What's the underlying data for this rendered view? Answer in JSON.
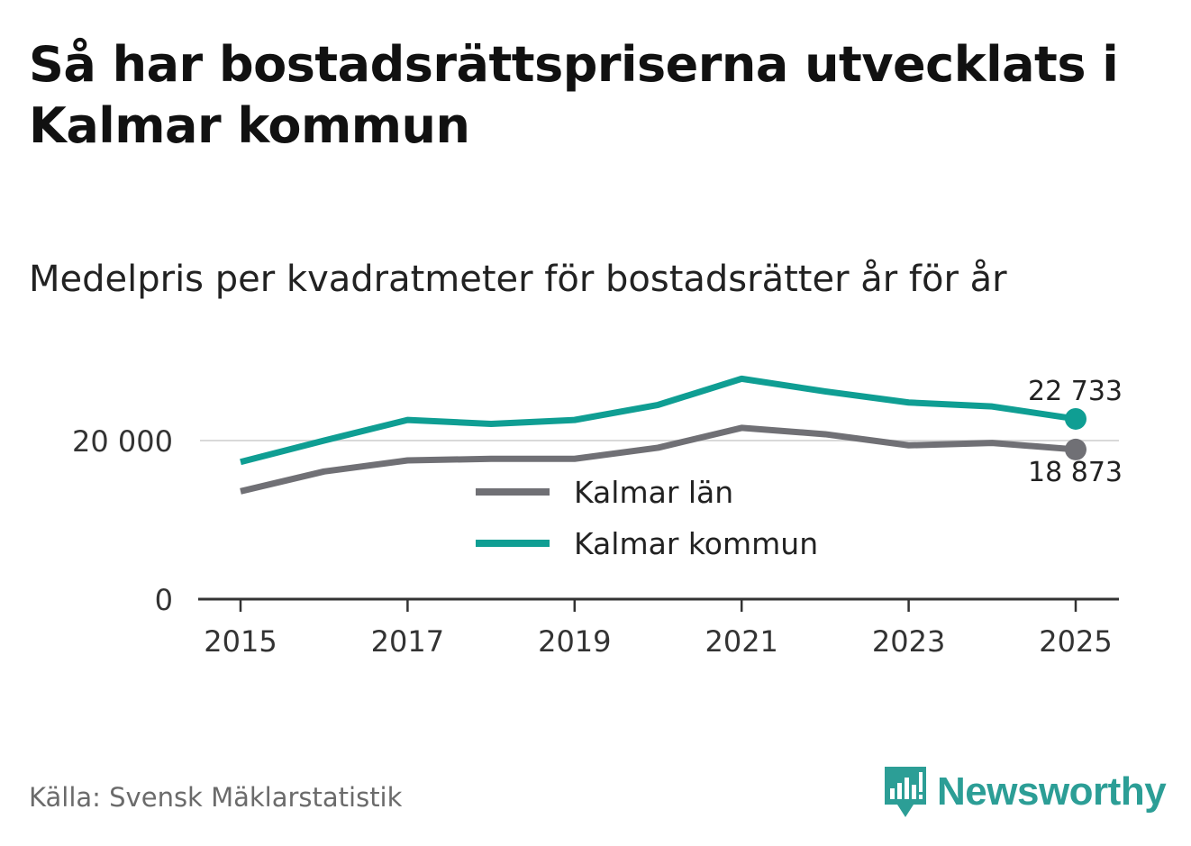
{
  "title": "Så har bostadsrättspriserna utvecklats i Kalmar kommun",
  "subtitle": "Medelpris per kvadratmeter för bostadsrätter år för år",
  "source": "Källa: Svensk Mäklarstatistik",
  "brand": "Newsworthy",
  "chart_data": {
    "type": "line",
    "title": "Medelpris per kvadratmeter för bostadsrätter år för år",
    "xlabel": "",
    "ylabel": "",
    "x": [
      2015,
      2016,
      2017,
      2018,
      2019,
      2020,
      2021,
      2022,
      2023,
      2024,
      2025
    ],
    "xticks": [
      "2015",
      "2017",
      "2019",
      "2021",
      "2023",
      "2025"
    ],
    "xtick_values": [
      2015,
      2017,
      2019,
      2021,
      2023,
      2025
    ],
    "ylim": [
      0,
      30000
    ],
    "yticks": [
      0,
      20000
    ],
    "ytick_labels": [
      "0",
      "20 000"
    ],
    "grid": "horizontal at 20 000",
    "legend_position": "center",
    "series": [
      {
        "name": "Kalmar län",
        "color": "#707075",
        "values": [
          13600,
          16100,
          17500,
          17700,
          17700,
          19100,
          21600,
          20800,
          19400,
          19700,
          18873
        ],
        "end_label": "18 873"
      },
      {
        "name": "Kalmar kommun",
        "color": "#0f9e93",
        "values": [
          17300,
          20000,
          22600,
          22100,
          22600,
          24500,
          27800,
          26200,
          24800,
          24300,
          22733
        ],
        "end_label": "22 733"
      }
    ]
  },
  "colors": {
    "accent": "#0f9e93",
    "secondary": "#707075",
    "brand": "#2c9e96",
    "grid": "#d9d9d9",
    "axis": "#333333"
  }
}
